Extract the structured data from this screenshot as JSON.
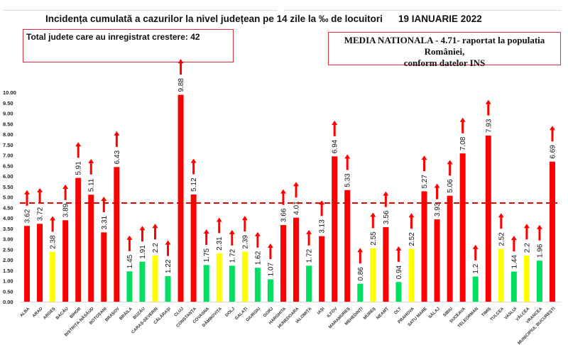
{
  "header": {
    "title": "Incidența cumulată a cazurilor la nivel județean pe 14 zile la ‰ de locuitori",
    "date": "19 IANUARIE 2022"
  },
  "annotations": {
    "total_box": "Total judete care au inregistrat crestere: 42",
    "national_box_line1": "MEDIA NATIONALA - 4.71-  raportat la populatia României,",
    "national_box_line2": "conform datelor INS"
  },
  "chart_data": {
    "type": "bar",
    "title": "Incidența cumulată a cazurilor la nivel județean pe 14 zile la ‰ de locuitori",
    "categories": [
      "ALBA",
      "ARAD",
      "ARGEȘ",
      "BACĂU",
      "BIHOR",
      "BISTRIȚA-NĂSĂUD",
      "BOTOȘANI",
      "BRAȘOV",
      "BRĂILA",
      "BUZĂU",
      "CARAȘ-SEVERIN",
      "CĂLĂRAȘI",
      "CLUJ",
      "CONSTANȚA",
      "COVASNA",
      "DÂMBOVIȚA",
      "DOLJ",
      "GALAȚI",
      "GIURGIU",
      "GORJ",
      "HARGHITA",
      "HUNEDOARA",
      "IALOMIȚA",
      "IAȘI",
      "ILFOV",
      "MARAMUREȘ",
      "MEHEDINȚI",
      "MUREȘ",
      "NEAMȚ",
      "OLT",
      "PRAHOVA",
      "SATU MARE",
      "SĂLAJ",
      "SIBIU",
      "SUCEAVA",
      "TELEORMAN",
      "TIMIȘ",
      "TULCEA",
      "VASLUI",
      "VÂLCEA",
      "VRANCEA",
      "MUNICIPIUL BUCUREȘTI"
    ],
    "values": [
      3.62,
      3.72,
      2.38,
      3.89,
      5.91,
      5.11,
      3.31,
      6.43,
      1.45,
      1.91,
      2.2,
      1.22,
      9.88,
      5.12,
      1.75,
      2.31,
      1.72,
      2.39,
      1.62,
      1.07,
      3.66,
      4.01,
      1.72,
      3.13,
      6.94,
      5.33,
      0.86,
      2.55,
      3.56,
      0.94,
      2.52,
      5.27,
      3.93,
      5.06,
      7.08,
      1.2,
      7.93,
      2.52,
      1.44,
      2.2,
      1.96,
      6.69
    ],
    "colors": [
      "#ff0000",
      "#ff0000",
      "#ffff00",
      "#ff0000",
      "#ff0000",
      "#ff0000",
      "#ff0000",
      "#ff0000",
      "#00e060",
      "#00e060",
      "#ffff00",
      "#00e060",
      "#ff0000",
      "#ff0000",
      "#00e060",
      "#ffff00",
      "#00e060",
      "#ffff00",
      "#00e060",
      "#00e060",
      "#ff0000",
      "#ff0000",
      "#00e060",
      "#ff0000",
      "#ff0000",
      "#ff0000",
      "#00e060",
      "#ffff00",
      "#ff0000",
      "#00e060",
      "#ffff00",
      "#ff0000",
      "#ff0000",
      "#ff0000",
      "#ff0000",
      "#00e060",
      "#ff0000",
      "#ffff00",
      "#00e060",
      "#ffff00",
      "#00e060",
      "#ff0000"
    ],
    "trend": "increase",
    "reference_line": {
      "value": 4.71,
      "style": "dashed",
      "color": "#e00000"
    },
    "ylim": [
      0,
      10
    ],
    "ytick_step": 0.5,
    "xlabel": "",
    "ylabel": "",
    "grid": false,
    "legend": "none"
  }
}
